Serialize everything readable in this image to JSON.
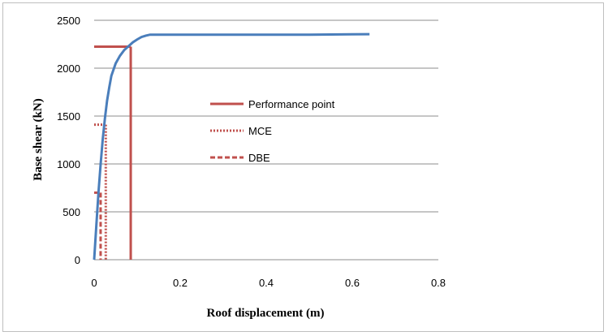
{
  "chart_data": {
    "type": "line",
    "title": "",
    "xlabel": "Roof displacement (m)",
    "ylabel": "Base shear (kN)",
    "xlim": [
      0,
      0.8
    ],
    "ylim": [
      0,
      2500
    ],
    "x_ticks": [
      0,
      0.2,
      0.4,
      0.6,
      0.8
    ],
    "x_tick_labels": [
      "0",
      "0.2",
      "0.4",
      "0.6",
      "0.8"
    ],
    "y_ticks": [
      0,
      500,
      1000,
      1500,
      2000,
      2500
    ],
    "y_tick_labels": [
      "0",
      "500",
      "1000",
      "1500",
      "2000",
      "2500"
    ],
    "grid": "horizontal",
    "legend_position": "center",
    "capacity_curve": {
      "color": "#4a7ebb",
      "x": [
        0,
        0.005,
        0.01,
        0.015,
        0.02,
        0.025,
        0.03,
        0.035,
        0.04,
        0.05,
        0.06,
        0.07,
        0.08,
        0.09,
        0.1,
        0.11,
        0.12,
        0.13,
        0.2,
        0.3,
        0.4,
        0.5,
        0.55,
        0.6,
        0.64
      ],
      "y": [
        0,
        360,
        700,
        1000,
        1260,
        1480,
        1660,
        1800,
        1920,
        2050,
        2130,
        2190,
        2230,
        2270,
        2300,
        2325,
        2340,
        2350,
        2350,
        2350,
        2350,
        2350,
        2352,
        2354,
        2355
      ]
    },
    "series": [
      {
        "name": "Performance point",
        "style": "solid",
        "color": "#c0504d",
        "x": 0.085,
        "y": 2225
      },
      {
        "name": "MCE",
        "style": "dotted",
        "color": "#c0504d",
        "x": 0.027,
        "y": 1410
      },
      {
        "name": "DBE",
        "style": "dashed",
        "color": "#c0504d",
        "x": 0.015,
        "y": 700
      }
    ]
  }
}
